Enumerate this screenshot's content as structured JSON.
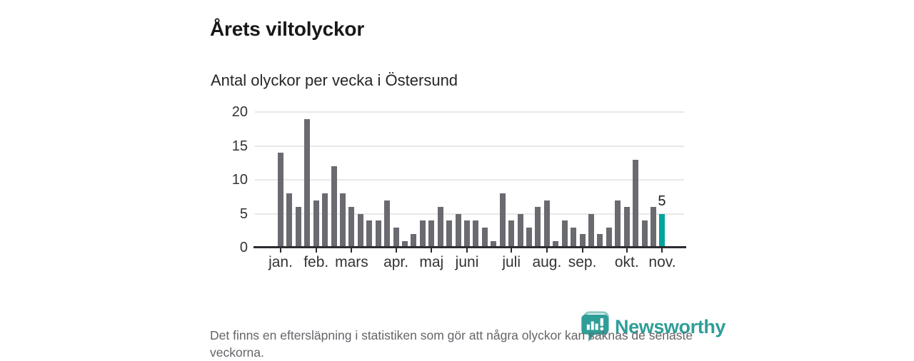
{
  "header": {
    "title": "Årets viltolyckor",
    "subtitle": "Antal olyckor per vecka i Östersund"
  },
  "chart_data": {
    "type": "bar",
    "title": "Årets viltolyckor",
    "subtitle": "Antal olyckor per vecka i Östersund",
    "values": [
      14,
      8,
      6,
      19,
      7,
      8,
      12,
      8,
      6,
      5,
      4,
      4,
      7,
      3,
      1,
      2,
      4,
      4,
      6,
      4,
      5,
      4,
      4,
      3,
      1,
      8,
      4,
      5,
      3,
      6,
      7,
      1,
      4,
      3,
      2,
      5,
      2,
      3,
      7,
      6,
      13,
      4,
      6,
      5
    ],
    "highlight_index": 43,
    "highlight_value_label": "5",
    "yticks": [
      0,
      5,
      10,
      15,
      20
    ],
    "ylim": [
      0,
      20
    ],
    "grid": true,
    "legend": false,
    "month_ticks": [
      {
        "label": "jan.",
        "index": 0
      },
      {
        "label": "feb.",
        "index": 4
      },
      {
        "label": "mars",
        "index": 8
      },
      {
        "label": "apr.",
        "index": 13
      },
      {
        "label": "maj",
        "index": 17
      },
      {
        "label": "juni",
        "index": 21
      },
      {
        "label": "juli",
        "index": 26
      },
      {
        "label": "aug.",
        "index": 30
      },
      {
        "label": "sep.",
        "index": 34
      },
      {
        "label": "okt.",
        "index": 39
      },
      {
        "label": "nov.",
        "index": 43
      }
    ],
    "colors": {
      "bar": "#6a6a71",
      "highlight": "#00a49c",
      "baseline": "#2c2c31",
      "gridline": "#e8e8ea",
      "tick_label": "#333333"
    }
  },
  "footnote": {
    "text": "Det finns en eftersläpning i statistiken som gör att några olyckor kan saknas de senaste veckorna."
  },
  "logo": {
    "text": "Newsworthy",
    "color": "#2f9e98",
    "icon": "bar-chart-speech-bubble-icon"
  }
}
